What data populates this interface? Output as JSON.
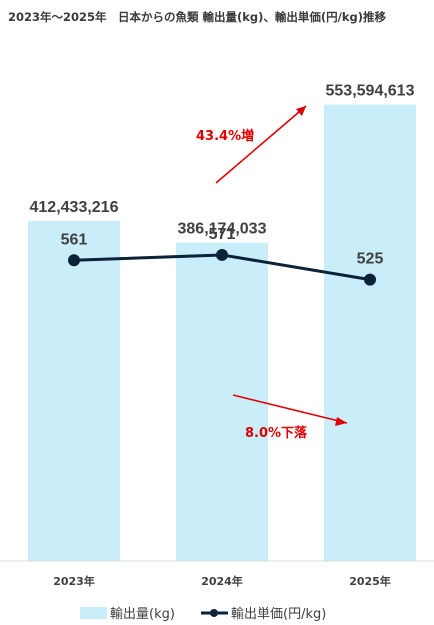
{
  "chart_data": {
    "type": "bar",
    "title": "2023年～2025年　日本からの魚類 輸出量(kg)、輸出単価(円/kg)推移",
    "categories": [
      "2023年",
      "2024年",
      "2025年"
    ],
    "series": [
      {
        "name": "輸出量(kg)",
        "type": "bar",
        "axis": "left",
        "values": [
          412433216,
          386174033,
          553594613
        ],
        "labels": [
          "412,433,216",
          "386,174,033",
          "553,594,613"
        ],
        "color": "#c9eefa"
      },
      {
        "name": "輸出単価(円/kg)",
        "type": "line",
        "axis": "right",
        "values": [
          561,
          571,
          525
        ],
        "labels": [
          "561",
          "571",
          "525"
        ],
        "color": "#0c2238"
      }
    ],
    "y_left_range": [
      0,
      650000000
    ],
    "y_right_range": [
      0,
      1000
    ],
    "grid": false,
    "legend": "bottom",
    "annotations": [
      {
        "text": "43.4%増",
        "color": "#e00000"
      },
      {
        "text": "8.0%下落",
        "color": "#e00000"
      }
    ]
  }
}
